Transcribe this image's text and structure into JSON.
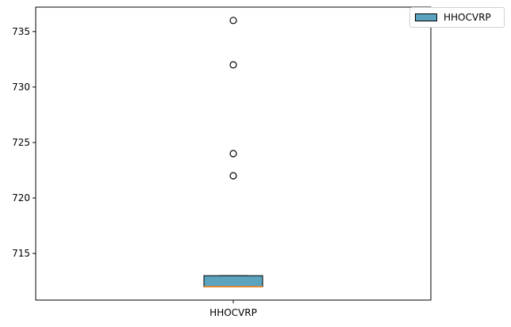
{
  "chart_data": {
    "type": "box",
    "title": "",
    "xlabel": "",
    "ylabel": "",
    "categories": [
      "HHOCVRP"
    ],
    "ylim": [
      710.8,
      737.2
    ],
    "yticks": [
      715,
      720,
      725,
      730,
      735
    ],
    "grid": false,
    "legend": {
      "placement": "top-right-outside",
      "entries": [
        "HHOCVRP"
      ]
    },
    "series": [
      {
        "name": "HHOCVRP",
        "color": "#5ba3bf",
        "median_color": "#ff7f0e",
        "whisker_low": 712,
        "q1": 712,
        "median": 712,
        "q3": 713,
        "whisker_high": 713,
        "outliers": [
          722,
          724,
          732,
          736
        ]
      }
    ]
  }
}
